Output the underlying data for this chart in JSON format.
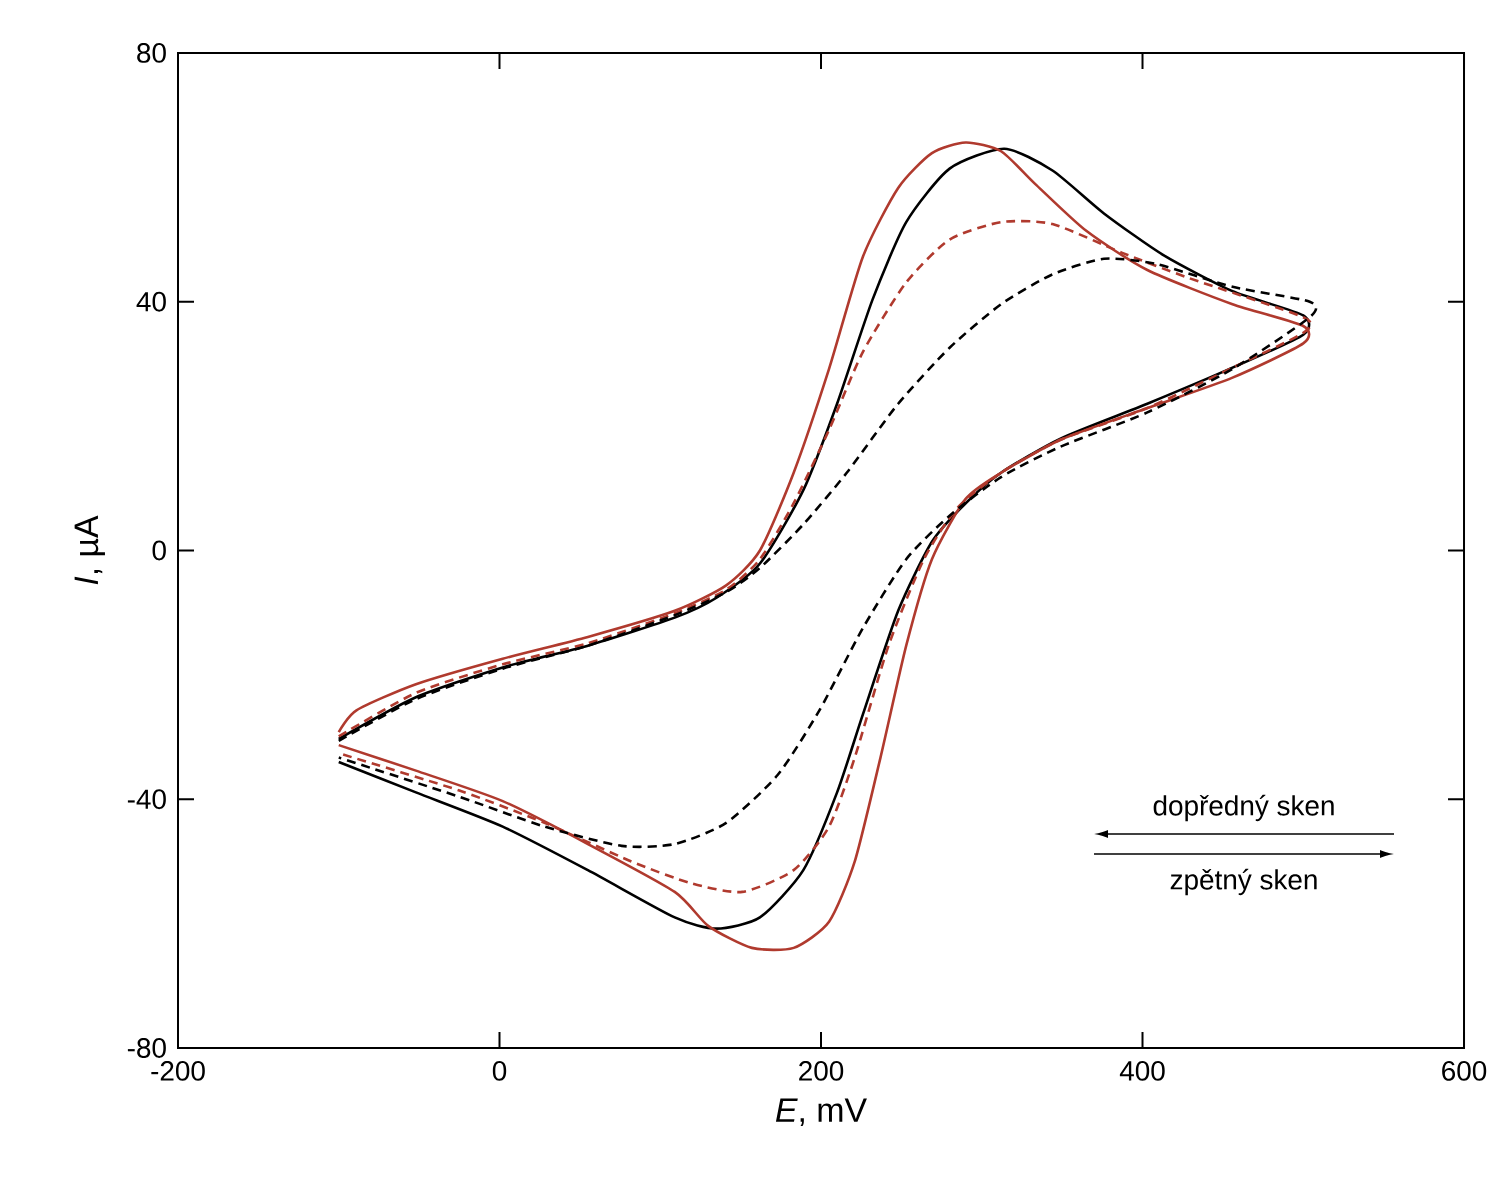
{
  "chart_data": {
    "type": "line",
    "xlabel": "*E*, mV",
    "ylabel": "*I*, µA",
    "xlim": [
      -200,
      600
    ],
    "xticks": [
      -200,
      0,
      200,
      400,
      600
    ],
    "ylim": [
      -80,
      80
    ],
    "yticks": [
      -80,
      -40,
      0,
      40,
      80
    ],
    "marker": "none",
    "annotations": [
      "dopředný sken",
      "zpětný sken"
    ],
    "series": [
      {
        "color": "#000000",
        "line_style": "solid",
        "x": [
          -100,
          -52,
          2,
          55,
          109,
          135,
          162,
          189,
          210,
          232,
          253,
          280,
          314,
          344,
          376,
          413,
          456,
          500,
          500,
          456,
          403,
          349,
          312,
          290,
          269,
          248,
          226,
          210,
          189,
          162,
          135,
          109,
          55,
          2,
          -52,
          -100
        ],
        "values": [
          -30.3,
          -23.6,
          -18.8,
          -15.3,
          -10.8,
          -7.6,
          -2.1,
          9.7,
          23.6,
          40.3,
          52.8,
          61.4,
          64.6,
          61.1,
          54.2,
          47.5,
          41.7,
          37.8,
          34.7,
          29.4,
          23.6,
          18,
          12.5,
          7.6,
          1.4,
          -9.7,
          -26.4,
          -38.9,
          -51.4,
          -59,
          -60.8,
          -59,
          -51.4,
          -44.4,
          -38.9,
          -34
        ]
      },
      {
        "color": "#b03a2e",
        "line_style": "solid",
        "x": [
          -100,
          -89,
          -52,
          2,
          55,
          109,
          141,
          162,
          183,
          205,
          226,
          248,
          269,
          290,
          312,
          333,
          365,
          403,
          456,
          500,
          500,
          456,
          403,
          349,
          312,
          290,
          269,
          253,
          237,
          221,
          205,
          183,
          157,
          130,
          109,
          55,
          2,
          -52,
          -100
        ],
        "values": [
          -29.2,
          -25.7,
          -21.5,
          -17.4,
          -13.9,
          -9.7,
          -5.6,
          0,
          12.5,
          29.2,
          47.2,
          58.3,
          63.9,
          65.6,
          64.2,
          59,
          51.4,
          45.1,
          39.6,
          36.1,
          33.3,
          27.8,
          22.9,
          17.8,
          12.5,
          8.3,
          -1.4,
          -15.3,
          -33.3,
          -50,
          -59.7,
          -63.9,
          -63.9,
          -60.4,
          -54.9,
          -47.2,
          -40.3,
          -35.4,
          -31.3
        ]
      },
      {
        "color": "#b03a2e",
        "line_style": "dashed",
        "x": [
          -100,
          -52,
          2,
          55,
          109,
          141,
          162,
          183,
          205,
          226,
          253,
          280,
          312,
          344,
          387,
          429,
          500,
          500,
          456,
          403,
          349,
          312,
          285,
          264,
          242,
          221,
          205,
          183,
          151,
          119,
          82,
          28,
          -25,
          -100
        ],
        "values": [
          -29.9,
          -22.9,
          -18.3,
          -14.9,
          -10.1,
          -6.3,
          -1.4,
          7.6,
          19.4,
          31.9,
          43.1,
          50,
          52.8,
          52.5,
          47.9,
          43.8,
          37.5,
          35,
          29.4,
          22.9,
          17.8,
          12.5,
          6.9,
          -1.4,
          -15.3,
          -33.3,
          -44.4,
          -51.4,
          -54.9,
          -53.5,
          -50,
          -43.8,
          -38.6,
          -32.6
        ]
      },
      {
        "color": "#000000",
        "line_style": "dashed",
        "x": [
          -100,
          -52,
          2,
          55,
          109,
          141,
          162,
          189,
          216,
          248,
          280,
          312,
          344,
          376,
          408,
          456,
          504,
          504,
          456,
          403,
          349,
          312,
          280,
          253,
          226,
          199,
          173,
          141,
          109,
          76,
          28,
          -25,
          -100
        ],
        "values": [
          -30.6,
          -23.9,
          -19,
          -15.3,
          -10.4,
          -6.7,
          -2.8,
          4.2,
          12.5,
          23.6,
          32.6,
          39.6,
          44.4,
          46.9,
          46.1,
          42.4,
          40,
          37.5,
          29.2,
          22.2,
          16.7,
          11.8,
          5.6,
          -1.4,
          -12.5,
          -25.7,
          -36.1,
          -43.8,
          -47.2,
          -47.5,
          -44.4,
          -39.6,
          -33.3
        ]
      }
    ]
  }
}
